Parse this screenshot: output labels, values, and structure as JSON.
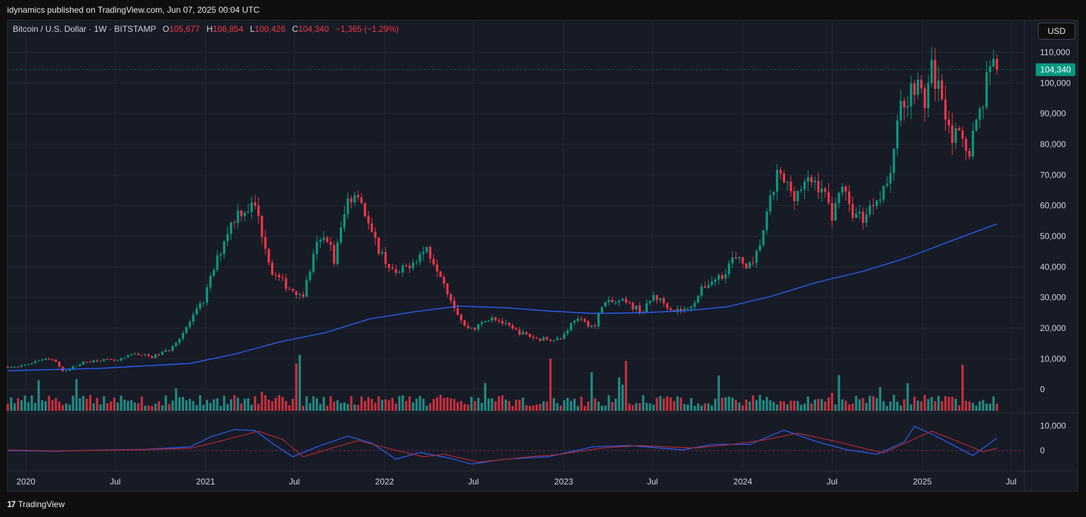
{
  "header": {
    "published": "idynamics published on TradingView.com, Jun 07, 2025 00:04 UTC"
  },
  "legend": {
    "symbol": "Bitcoin / U.S. Dollar · 1W · BITSTAMP",
    "open_label": "O",
    "open": "105,677",
    "high_label": "H",
    "high": "106,854",
    "low_label": "L",
    "low": "100,426",
    "close_label": "C",
    "close": "104,340",
    "change": "−1,365 (−1.29%)"
  },
  "currency_button": "USD",
  "footer": {
    "logo_mark": "17",
    "brand": "TradingView"
  },
  "colors": {
    "up": "#26a69a",
    "down": "#f23645",
    "candle_up": "#089981",
    "candle_down": "#f23645",
    "ma": "#2962ff",
    "osc_fast": "#2962ff",
    "osc_slow": "#b22833",
    "last_price_bg": "#089981",
    "background": "#171b26",
    "grid": "#242836"
  },
  "chart_data": [
    {
      "type": "candlestick",
      "title": "Bitcoin / U.S. Dollar · 1W · BITSTAMP",
      "ylim": [
        -7000,
        116000
      ],
      "y_ticks": [
        0,
        10000,
        20000,
        30000,
        40000,
        50000,
        60000,
        70000,
        80000,
        90000,
        100000,
        110000
      ],
      "y_tick_labels": [
        "0",
        "10,000",
        "20,000",
        "30,000",
        "40,000",
        "50,000",
        "60,000",
        "70,000",
        "80,000",
        "90,000",
        "100,000",
        "110,000"
      ],
      "x_range": [
        "2019-11-25",
        "2025-07-28"
      ],
      "x_ticks": [
        "2020-01-01",
        "2020-07-01",
        "2021-01-01",
        "2021-07-01",
        "2022-01-01",
        "2022-07-01",
        "2023-01-01",
        "2023-07-01",
        "2024-01-01",
        "2024-07-01",
        "2025-01-01",
        "2025-07-01"
      ],
      "x_tick_labels": [
        "2020",
        "Jul",
        "2021",
        "Jul",
        "2022",
        "Jul",
        "2023",
        "Jul",
        "2024",
        "Jul",
        "2025",
        "Jul"
      ],
      "last_price": 104340,
      "last_price_label": "104,340",
      "price_path": [
        [
          "2019-11-25",
          7400
        ],
        [
          "2019-12-16",
          7200
        ],
        [
          "2020-02-10",
          10200
        ],
        [
          "2020-03-02",
          8900
        ],
        [
          "2020-03-16",
          5800
        ],
        [
          "2020-04-27",
          8800
        ],
        [
          "2020-06-01",
          9700
        ],
        [
          "2020-07-06",
          9300
        ],
        [
          "2020-08-10",
          11800
        ],
        [
          "2020-09-14",
          10600
        ],
        [
          "2020-10-19",
          13000
        ],
        [
          "2020-11-16",
          18500
        ],
        [
          "2020-12-28",
          29000
        ],
        [
          "2021-01-11",
          36000
        ],
        [
          "2021-02-15",
          52000
        ],
        [
          "2021-03-08",
          58000
        ],
        [
          "2021-04-12",
          60000
        ],
        [
          "2021-05-17",
          38000
        ],
        [
          "2021-06-21",
          33000
        ],
        [
          "2021-07-19",
          31000
        ],
        [
          "2021-08-16",
          47000
        ],
        [
          "2021-09-06",
          50000
        ],
        [
          "2021-09-20",
          42000
        ],
        [
          "2021-10-18",
          62000
        ],
        [
          "2021-11-08",
          65000
        ],
        [
          "2021-12-06",
          50000
        ],
        [
          "2022-01-03",
          42000
        ],
        [
          "2022-01-24",
          37000
        ],
        [
          "2022-03-28",
          46000
        ],
        [
          "2022-04-25",
          38000
        ],
        [
          "2022-05-16",
          29500
        ],
        [
          "2022-06-13",
          20500
        ],
        [
          "2022-07-04",
          20000
        ],
        [
          "2022-08-08",
          24000
        ],
        [
          "2022-09-19",
          19500
        ],
        [
          "2022-11-07",
          16500
        ],
        [
          "2022-12-26",
          16600
        ],
        [
          "2023-01-23",
          23000
        ],
        [
          "2023-03-06",
          20500
        ],
        [
          "2023-03-20",
          28000
        ],
        [
          "2023-05-01",
          28500
        ],
        [
          "2023-06-12",
          25500
        ],
        [
          "2023-07-03",
          30500
        ],
        [
          "2023-08-14",
          26000
        ],
        [
          "2023-09-11",
          26000
        ],
        [
          "2023-10-16",
          34000
        ],
        [
          "2023-11-20",
          37500
        ],
        [
          "2023-12-11",
          42500
        ],
        [
          "2024-01-22",
          40000
        ],
        [
          "2024-02-12",
          52000
        ],
        [
          "2024-03-11",
          70000
        ],
        [
          "2024-04-15",
          64000
        ],
        [
          "2024-05-20",
          68000
        ],
        [
          "2024-06-10",
          66000
        ],
        [
          "2024-07-01",
          57000
        ],
        [
          "2024-07-22",
          67500
        ],
        [
          "2024-08-05",
          58500
        ],
        [
          "2024-09-02",
          56000
        ],
        [
          "2024-09-30",
          63000
        ],
        [
          "2024-10-28",
          69000
        ],
        [
          "2024-11-11",
          90000
        ],
        [
          "2024-12-16",
          100000
        ],
        [
          "2025-01-06",
          94000
        ],
        [
          "2025-01-20",
          104000
        ],
        [
          "2025-02-10",
          96000
        ],
        [
          "2025-03-03",
          83000
        ],
        [
          "2025-04-07",
          79000
        ],
        [
          "2025-05-05",
          95000
        ],
        [
          "2025-05-19",
          108000
        ],
        [
          "2025-06-02",
          104340
        ]
      ],
      "moving_average": [
        [
          "2019-11-25",
          6100
        ],
        [
          "2020-06-01",
          6900
        ],
        [
          "2020-12-01",
          8500
        ],
        [
          "2021-03-01",
          11500
        ],
        [
          "2021-06-01",
          15500
        ],
        [
          "2021-09-01",
          18500
        ],
        [
          "2021-12-01",
          23000
        ],
        [
          "2022-03-01",
          25300
        ],
        [
          "2022-06-01",
          27200
        ],
        [
          "2022-09-01",
          26700
        ],
        [
          "2022-12-01",
          25600
        ],
        [
          "2023-03-01",
          24800
        ],
        [
          "2023-06-01",
          25000
        ],
        [
          "2023-09-01",
          25600
        ],
        [
          "2023-12-01",
          27000
        ],
        [
          "2024-03-01",
          30500
        ],
        [
          "2024-06-01",
          35000
        ],
        [
          "2024-09-01",
          38500
        ],
        [
          "2024-12-01",
          43000
        ],
        [
          "2025-03-01",
          48500
        ],
        [
          "2025-06-02",
          54000
        ]
      ]
    },
    {
      "type": "bar",
      "title": "Volume",
      "description": "weekly volume bars coloured by candle direction, occupying the bottom of the price pane"
    },
    {
      "type": "line",
      "title": "Oscillator",
      "ylim": [
        -8000,
        14000
      ],
      "y_ticks": [
        0,
        10000
      ],
      "y_tick_labels": [
        "0",
        "10,000"
      ],
      "series": [
        {
          "name": "",
          "values": [
            [
              "2019-11-25",
              0
            ],
            [
              "2020-03-01",
              -300
            ],
            [
              "2020-06-01",
              200
            ],
            [
              "2020-09-01",
              500
            ],
            [
              "2020-12-01",
              1500
            ],
            [
              "2021-01-11",
              5500
            ],
            [
              "2021-03-01",
              8500
            ],
            [
              "2021-04-12",
              8000
            ],
            [
              "2021-05-24",
              2000
            ],
            [
              "2021-06-28",
              -2500
            ],
            [
              "2021-08-16",
              1500
            ],
            [
              "2021-10-18",
              5800
            ],
            [
              "2021-12-06",
              3000
            ],
            [
              "2022-01-24",
              -3500
            ],
            [
              "2022-03-14",
              -800
            ],
            [
              "2022-05-16",
              -3200
            ],
            [
              "2022-06-27",
              -5500
            ],
            [
              "2022-09-01",
              -3500
            ],
            [
              "2022-12-01",
              -2500
            ],
            [
              "2023-03-01",
              1500
            ],
            [
              "2023-05-15",
              2000
            ],
            [
              "2023-09-01",
              300
            ],
            [
              "2023-11-01",
              2500
            ],
            [
              "2024-01-15",
              2500
            ],
            [
              "2024-03-25",
              8200
            ],
            [
              "2024-06-01",
              3500
            ],
            [
              "2024-08-01",
              300
            ],
            [
              "2024-10-01",
              -1500
            ],
            [
              "2024-11-25",
              3500
            ],
            [
              "2024-12-16",
              9800
            ],
            [
              "2025-01-27",
              6000
            ],
            [
              "2025-04-14",
              -2000
            ],
            [
              "2025-06-02",
              5000
            ]
          ]
        },
        {
          "name": "",
          "values": [
            [
              "2019-11-25",
              200
            ],
            [
              "2020-03-01",
              -200
            ],
            [
              "2020-09-01",
              400
            ],
            [
              "2020-12-01",
              900
            ],
            [
              "2021-01-25",
              3500
            ],
            [
              "2021-04-19",
              7800
            ],
            [
              "2021-06-07",
              4500
            ],
            [
              "2021-07-19",
              -2500
            ],
            [
              "2021-09-20",
              1200
            ],
            [
              "2021-11-08",
              4000
            ],
            [
              "2022-01-10",
              800
            ],
            [
              "2022-03-21",
              -2500
            ],
            [
              "2022-05-02",
              -1500
            ],
            [
              "2022-07-11",
              -4700
            ],
            [
              "2022-10-24",
              -2500
            ],
            [
              "2022-12-26",
              -1500
            ],
            [
              "2023-03-20",
              1000
            ],
            [
              "2023-06-05",
              2000
            ],
            [
              "2023-09-25",
              1000
            ],
            [
              "2023-12-11",
              2500
            ],
            [
              "2024-02-12",
              4200
            ],
            [
              "2024-04-22",
              7000
            ],
            [
              "2024-07-01",
              4000
            ],
            [
              "2024-10-14",
              -1000
            ],
            [
              "2024-12-02",
              3500
            ],
            [
              "2025-01-20",
              7800
            ],
            [
              "2025-03-17",
              3500
            ],
            [
              "2025-05-05",
              -500
            ],
            [
              "2025-06-02",
              1000
            ]
          ]
        }
      ]
    }
  ]
}
